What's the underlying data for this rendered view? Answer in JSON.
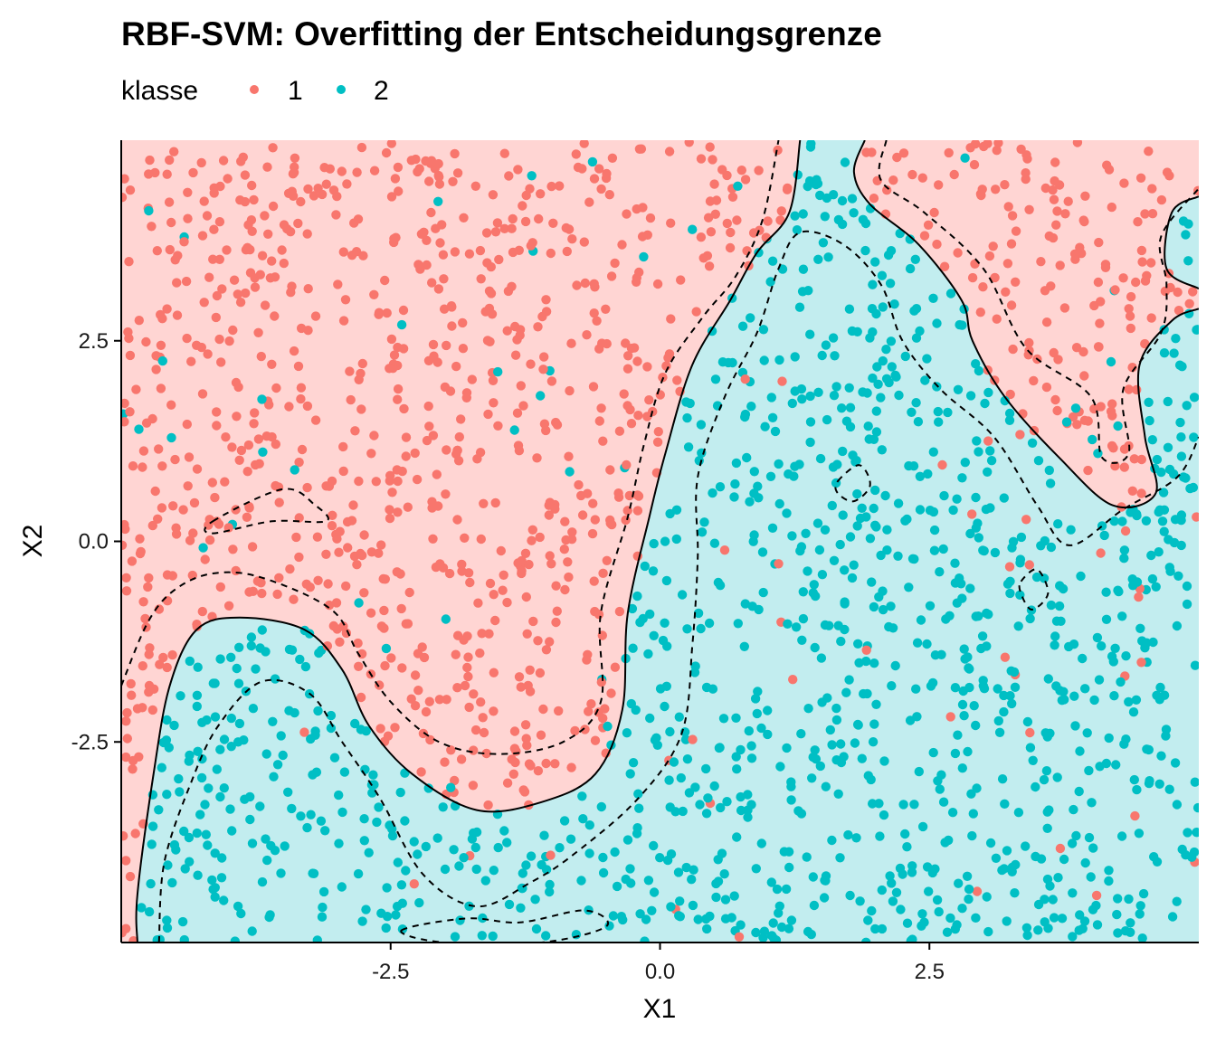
{
  "chart_data": {
    "type": "scatter",
    "title": "RBF-SVM: Overfitting der Entscheidungsgrenze",
    "xlabel": "X1",
    "ylabel": "X2",
    "xlim": [
      -5,
      5
    ],
    "ylim": [
      -5,
      5
    ],
    "x_ticks": [
      -2.5,
      0.0,
      2.5
    ],
    "x_tick_labels": [
      "-2.5",
      "0.0",
      "2.5"
    ],
    "y_ticks": [
      -2.5,
      0.0,
      2.5
    ],
    "y_tick_labels": [
      "-2.5",
      "0.0",
      "2.5"
    ],
    "grid": false,
    "legend": {
      "title": "klasse",
      "placement": "top-left",
      "entries": [
        {
          "label": "1",
          "color": "#F8766D"
        },
        {
          "label": "2",
          "color": "#00BFC4"
        }
      ]
    },
    "region_colors": {
      "1": "#FFD5D3",
      "2": "#C2EDEF"
    },
    "decision_boundary": [
      [
        [
          -4.85,
          -5.0
        ],
        [
          -4.85,
          -4.4
        ],
        [
          -4.7,
          -2.9
        ],
        [
          -4.55,
          -1.8
        ],
        [
          -4.3,
          -1.1
        ],
        [
          -3.9,
          -0.95
        ],
        [
          -3.3,
          -1.1
        ],
        [
          -2.95,
          -1.6
        ],
        [
          -2.7,
          -2.3
        ],
        [
          -2.3,
          -2.9
        ],
        [
          -1.7,
          -3.35
        ],
        [
          -1.1,
          -3.25
        ],
        [
          -0.6,
          -2.9
        ],
        [
          -0.35,
          -2.1
        ],
        [
          -0.3,
          -0.9
        ],
        [
          -0.1,
          0.3
        ],
        [
          0.05,
          1.1
        ],
        [
          0.3,
          2.2
        ],
        [
          0.65,
          3.0
        ],
        [
          0.9,
          3.6
        ],
        [
          1.2,
          4.1
        ],
        [
          1.3,
          5.0
        ]
      ],
      [
        [
          1.9,
          5.0
        ],
        [
          1.8,
          4.6
        ],
        [
          1.95,
          4.2
        ],
        [
          2.4,
          3.7
        ],
        [
          2.8,
          3.0
        ],
        [
          2.9,
          2.5
        ],
        [
          3.2,
          1.8
        ],
        [
          3.7,
          1.05
        ],
        [
          4.2,
          0.45
        ],
        [
          4.6,
          0.6
        ],
        [
          4.5,
          1.3
        ],
        [
          4.45,
          2.2
        ],
        [
          4.75,
          2.75
        ],
        [
          5.0,
          2.9
        ]
      ],
      [
        [
          5.0,
          4.3
        ],
        [
          4.75,
          4.1
        ],
        [
          4.7,
          3.4
        ],
        [
          5.0,
          3.15
        ]
      ]
    ],
    "margins": [
      [
        [
          -4.65,
          -5.0
        ],
        [
          -4.6,
          -4.0
        ],
        [
          -4.35,
          -3.0
        ],
        [
          -4.1,
          -2.3
        ],
        [
          -3.7,
          -1.75
        ],
        [
          -3.25,
          -1.9
        ],
        [
          -2.95,
          -2.5
        ],
        [
          -2.6,
          -3.2
        ],
        [
          -2.2,
          -4.15
        ],
        [
          -1.7,
          -4.55
        ],
        [
          -1.2,
          -4.25
        ],
        [
          -0.8,
          -3.9
        ],
        [
          -0.2,
          -3.2
        ],
        [
          0.2,
          -2.4
        ],
        [
          0.3,
          -1.3
        ],
        [
          0.35,
          -0.2
        ],
        [
          0.35,
          0.8
        ],
        [
          0.6,
          1.8
        ],
        [
          0.9,
          2.6
        ],
        [
          1.1,
          3.4
        ],
        [
          1.3,
          3.85
        ],
        [
          1.7,
          3.7
        ],
        [
          2.05,
          3.2
        ],
        [
          2.25,
          2.5
        ],
        [
          2.6,
          1.9
        ],
        [
          3.1,
          1.3
        ],
        [
          3.5,
          0.45
        ],
        [
          3.8,
          -0.05
        ],
        [
          4.3,
          0.4
        ],
        [
          4.8,
          0.8
        ],
        [
          5.0,
          1.3
        ]
      ],
      [
        [
          -5.0,
          -1.8
        ],
        [
          -4.75,
          -1.0
        ],
        [
          -4.5,
          -0.6
        ],
        [
          -4.15,
          -0.4
        ],
        [
          -3.7,
          -0.45
        ],
        [
          -3.05,
          -0.85
        ],
        [
          -2.8,
          -1.4
        ],
        [
          -2.5,
          -2.0
        ],
        [
          -2.05,
          -2.5
        ],
        [
          -1.5,
          -2.65
        ],
        [
          -0.9,
          -2.5
        ],
        [
          -0.55,
          -2.0
        ],
        [
          -0.55,
          -0.9
        ],
        [
          -0.3,
          0.3
        ],
        [
          -0.15,
          1.2
        ],
        [
          0.05,
          2.1
        ],
        [
          0.4,
          2.8
        ],
        [
          0.7,
          3.3
        ],
        [
          0.95,
          4.0
        ],
        [
          1.1,
          5.0
        ]
      ],
      [
        [
          2.1,
          5.0
        ],
        [
          2.05,
          4.5
        ],
        [
          2.45,
          4.1
        ],
        [
          3.0,
          3.4
        ],
        [
          3.4,
          2.4
        ],
        [
          4.0,
          1.8
        ],
        [
          4.1,
          1.05
        ],
        [
          4.35,
          1.1
        ],
        [
          4.3,
          1.9
        ],
        [
          4.65,
          2.6
        ],
        [
          4.7,
          3.2
        ],
        [
          4.65,
          3.8
        ],
        [
          5.0,
          4.4
        ]
      ],
      [
        [
          -4.15,
          0.25
        ],
        [
          -3.5,
          0.65
        ],
        [
          -3.2,
          0.45
        ],
        [
          -3.1,
          0.25
        ],
        [
          -3.6,
          0.25
        ],
        [
          -4.15,
          0.1
        ]
      ],
      [
        [
          1.65,
          0.75
        ],
        [
          1.85,
          0.95
        ],
        [
          1.95,
          0.7
        ],
        [
          1.8,
          0.5
        ],
        [
          1.65,
          0.6
        ]
      ],
      [
        [
          3.35,
          -0.5
        ],
        [
          3.5,
          -0.35
        ],
        [
          3.6,
          -0.65
        ],
        [
          3.45,
          -0.85
        ],
        [
          3.35,
          -0.65
        ]
      ],
      [
        [
          -2.4,
          -4.85
        ],
        [
          -1.8,
          -4.7
        ],
        [
          -1.3,
          -4.75
        ],
        [
          -0.7,
          -4.6
        ],
        [
          -0.5,
          -4.8
        ],
        [
          -1.1,
          -5.0
        ],
        [
          -2.0,
          -5.0
        ]
      ]
    ],
    "series": [
      {
        "name": "1",
        "color": "#F8766D",
        "point_count": 1100
      },
      {
        "name": "2",
        "color": "#00BFC4",
        "point_count": 1100
      }
    ]
  }
}
